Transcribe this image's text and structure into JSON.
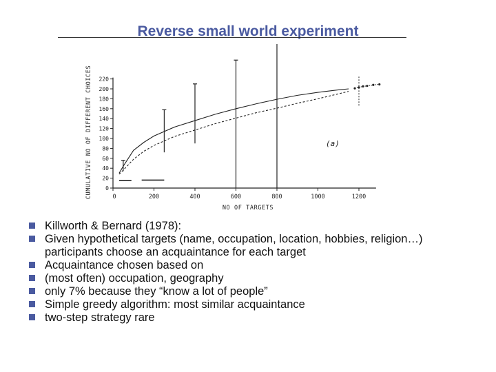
{
  "slide": {
    "title": "Reverse small world experiment",
    "accent_color": "#4a5aa0"
  },
  "bullets": [
    {
      "text": "Killworth & Bernard (1978):"
    },
    {
      "text": "Given hypothetical targets (name, occupation, location, hobbies, religion…)",
      "continuation": "participants choose an acquaintance for each target"
    },
    {
      "text": "Acquaintance chosen based on"
    },
    {
      "text": "(most often)  occupation, geography",
      "indent": 1
    },
    {
      "text": "only 7% because they “know a lot of people”",
      "indent": 2
    },
    {
      "text": "Simple greedy algorithm: most similar acquaintance"
    },
    {
      "text": "two-step strategy rare"
    }
  ],
  "chart_data": {
    "type": "line",
    "title": "",
    "panel_label": "(a)",
    "xlabel": "NO OF TARGETS",
    "ylabel": "CUMULATIVE NO OF DIFFERENT CHOICES",
    "xlim": [
      0,
      1250
    ],
    "ylim": [
      0,
      220
    ],
    "x_ticks": [
      0,
      200,
      400,
      600,
      800,
      1000,
      1200
    ],
    "y_ticks": [
      0,
      20,
      40,
      60,
      80,
      100,
      120,
      140,
      160,
      180,
      200,
      220
    ],
    "grid": false,
    "series": [
      {
        "style": "solid",
        "points": [
          [
            30,
            30
          ],
          [
            50,
            44
          ],
          [
            100,
            76
          ],
          [
            150,
            92
          ],
          [
            200,
            105
          ],
          [
            300,
            123
          ],
          [
            400,
            136
          ],
          [
            500,
            149
          ],
          [
            600,
            160
          ],
          [
            700,
            170
          ],
          [
            800,
            179
          ],
          [
            900,
            187
          ],
          [
            1000,
            193
          ],
          [
            1100,
            198
          ],
          [
            1150,
            200
          ]
        ]
      },
      {
        "style": "dashed",
        "points": [
          [
            30,
            28
          ],
          [
            50,
            36
          ],
          [
            100,
            58
          ],
          [
            150,
            74
          ],
          [
            200,
            86
          ],
          [
            300,
            104
          ],
          [
            400,
            117
          ],
          [
            500,
            130
          ],
          [
            600,
            141
          ],
          [
            700,
            152
          ],
          [
            800,
            161
          ],
          [
            900,
            171
          ],
          [
            1000,
            180
          ],
          [
            1100,
            190
          ],
          [
            1150,
            195
          ]
        ]
      },
      {
        "style": "dotted-markers",
        "points": [
          [
            1180,
            201
          ],
          [
            1200,
            203
          ],
          [
            1220,
            205
          ],
          [
            1240,
            206
          ],
          [
            1270,
            208
          ],
          [
            1300,
            209
          ]
        ]
      }
    ],
    "error_bars": [
      {
        "x": 50,
        "low": 34,
        "high": 56
      },
      {
        "x": 250,
        "low": 72,
        "high": 158
      },
      {
        "x": 400,
        "low": 90,
        "high": 210
      },
      {
        "x": 600,
        "low": 0,
        "high": 258
      },
      {
        "x": 800,
        "low": 0,
        "high": 308
      }
    ],
    "vertical_dashed_line_x": 1200,
    "bottom_segments": [
      {
        "x0": 30,
        "x1": 90,
        "y": 15
      },
      {
        "x0": 140,
        "x1": 250,
        "y": 16
      }
    ]
  }
}
